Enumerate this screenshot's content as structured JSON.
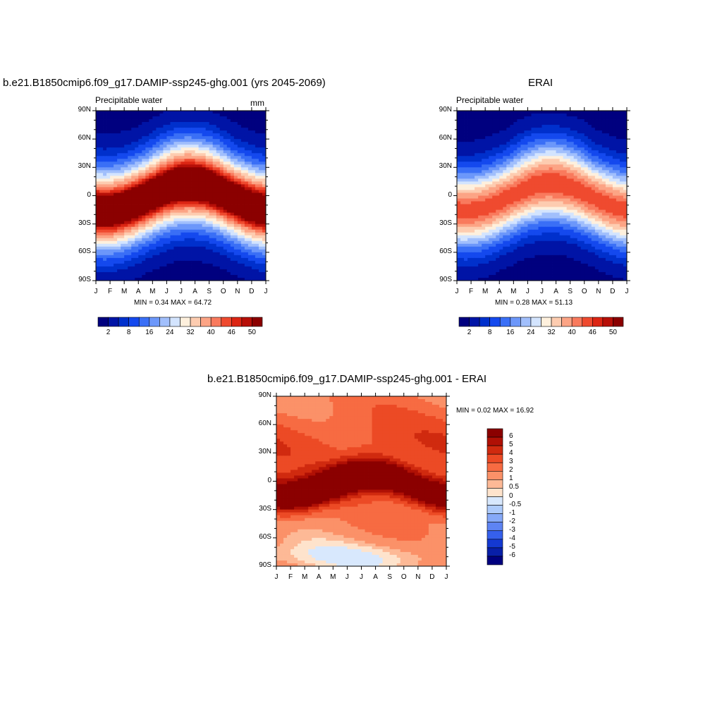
{
  "chart_data": [
    {
      "type": "heatmap",
      "title": "b.e21.B1850cmip6.f09_g17.DAMIP-ssp245-ghg.001 (yrs 2045-2069)",
      "left_label": "Precipitable water",
      "right_label": "mm",
      "stats": "MIN =   0.34 MAX =  64.72",
      "x_ticks": [
        "J",
        "F",
        "M",
        "A",
        "M",
        "J",
        "J",
        "A",
        "S",
        "O",
        "N",
        "D",
        "J"
      ],
      "y_ticks": [
        "90N",
        "60N",
        "30N",
        "0",
        "30S",
        "60S",
        "90S"
      ],
      "colorbar": {
        "orientation": "horizontal",
        "labels": [
          "2",
          "8",
          "16",
          "24",
          "32",
          "40",
          "46",
          "50"
        ],
        "colors": [
          "#00007f",
          "#0014a6",
          "#0030cc",
          "#1449ee",
          "#3a6ff6",
          "#6c97fa",
          "#a1bffc",
          "#d3e4fe",
          "#fef0dd",
          "#fdccb0",
          "#fca485",
          "#f97a5d",
          "#ef4a2f",
          "#dc2513",
          "#b70f08",
          "#8b0000"
        ]
      }
    },
    {
      "type": "heatmap",
      "title": "ERAI",
      "left_label": "Precipitable water",
      "stats": "MIN =   0.28 MAX =  51.13",
      "x_ticks": [
        "J",
        "F",
        "M",
        "A",
        "M",
        "J",
        "J",
        "A",
        "S",
        "O",
        "N",
        "D",
        "J"
      ],
      "y_ticks": [
        "90N",
        "60N",
        "30N",
        "0",
        "30S",
        "60S",
        "90S"
      ],
      "colorbar": {
        "orientation": "horizontal",
        "labels": [
          "2",
          "8",
          "16",
          "24",
          "32",
          "40",
          "46",
          "50"
        ]
      }
    },
    {
      "type": "heatmap",
      "title": "b.e21.B1850cmip6.f09_g17.DAMIP-ssp245-ghg.001 - ERAI",
      "stats": "MIN =   0.02 MAX =  16.92",
      "x_ticks": [
        "J",
        "F",
        "M",
        "A",
        "M",
        "J",
        "J",
        "A",
        "S",
        "O",
        "N",
        "D",
        "J"
      ],
      "y_ticks": [
        "90N",
        "60N",
        "30N",
        "0",
        "30S",
        "60S",
        "90S"
      ],
      "colorbar": {
        "orientation": "vertical",
        "labels": [
          "6",
          "5",
          "4",
          "3",
          "2",
          "1",
          "0.5",
          "0",
          "-0.5",
          "-1",
          "-2",
          "-3",
          "-4",
          "-5",
          "-6"
        ],
        "colors": [
          "#8b0000",
          "#b01005",
          "#d02a0f",
          "#ec4a25",
          "#f76b42",
          "#fb9168",
          "#fdb996",
          "#fee3cc",
          "#d8e8fd",
          "#aecbfb",
          "#86a9f8",
          "#5e84f3",
          "#3660ec",
          "#1439d2",
          "#081fa8",
          "#00007f"
        ]
      }
    }
  ]
}
